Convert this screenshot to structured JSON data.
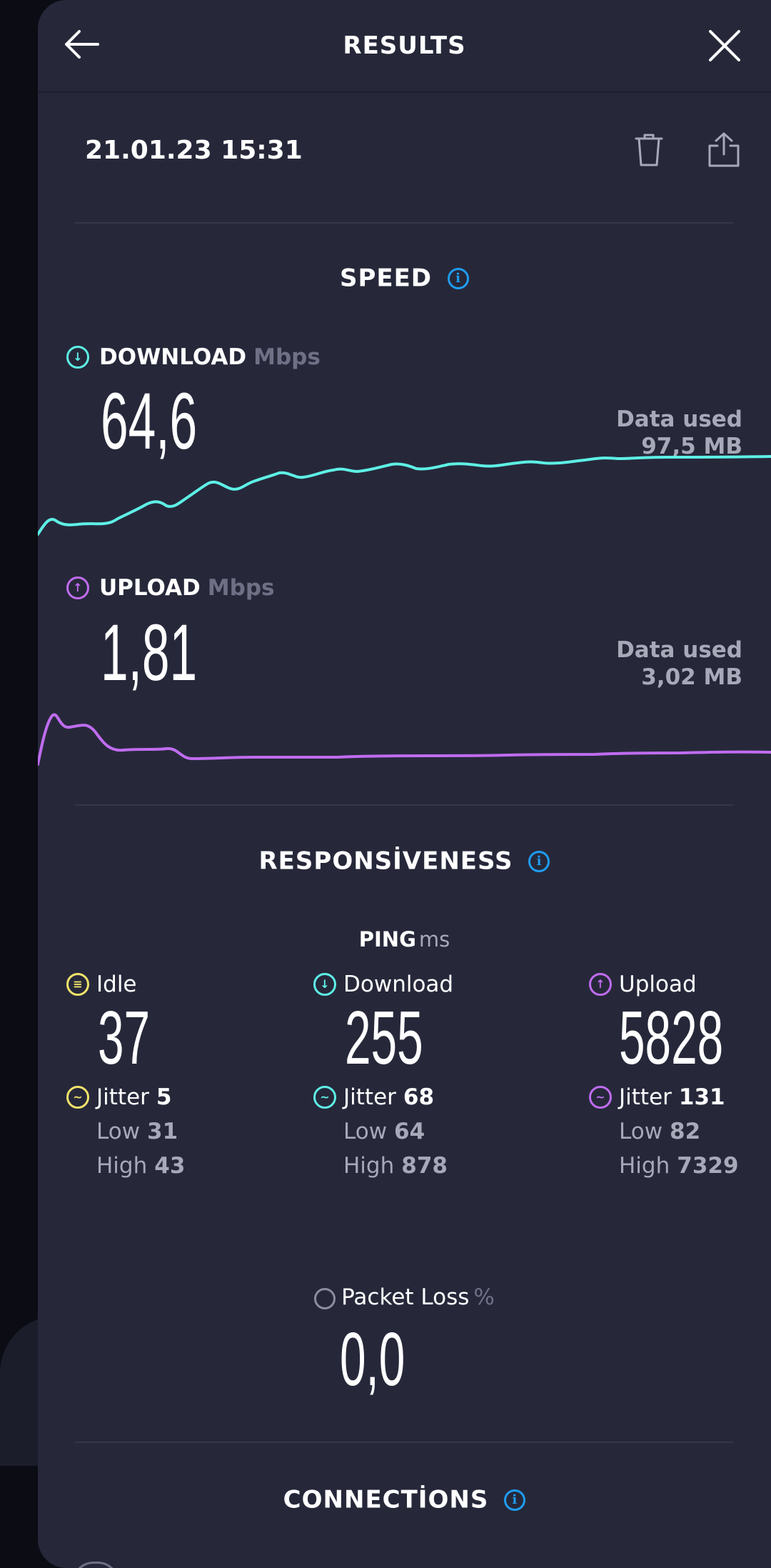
{
  "header": {
    "title": "RESULTS",
    "back_icon": "arrow-left-icon",
    "close_icon": "close-icon"
  },
  "result": {
    "datetime": "21.01.23 15:31",
    "delete_icon": "trash-icon",
    "share_icon": "share-icon"
  },
  "speed": {
    "title": "SPEED",
    "download": {
      "label": "DOWNLOAD",
      "unit": "Mbps",
      "value": "64,6",
      "data_used_label": "Data used",
      "data_used_value": "97,5 MB",
      "color": "#5ef0e6"
    },
    "upload": {
      "label": "UPLOAD",
      "unit": "Mbps",
      "value": "1,81",
      "data_used_label": "Data used",
      "data_used_value": "3,02 MB",
      "color": "#c06cf0"
    }
  },
  "responsiveness": {
    "title": "RESPONSİVENESS",
    "ping_label": "PING",
    "ping_unit": "ms",
    "idle": {
      "label": "Idle",
      "value": "37",
      "jitter_label": "Jitter",
      "jitter": "5",
      "low_label": "Low",
      "low": "31",
      "high_label": "High",
      "high": "43",
      "color": "#f2e36a"
    },
    "download": {
      "label": "Download",
      "value": "255",
      "jitter_label": "Jitter",
      "jitter": "68",
      "low_label": "Low",
      "low": "64",
      "high_label": "High",
      "high": "878",
      "color": "#5ef0e6"
    },
    "upload": {
      "label": "Upload",
      "value": "5828",
      "jitter_label": "Jitter",
      "jitter": "131",
      "low_label": "Low",
      "low": "82",
      "high_label": "High",
      "high": "7329",
      "color": "#c06cf0"
    },
    "packet_loss": {
      "label": "Packet Loss",
      "unit": "%",
      "value": "0,0"
    }
  },
  "connections": {
    "title": "CONNECTİONS"
  }
}
